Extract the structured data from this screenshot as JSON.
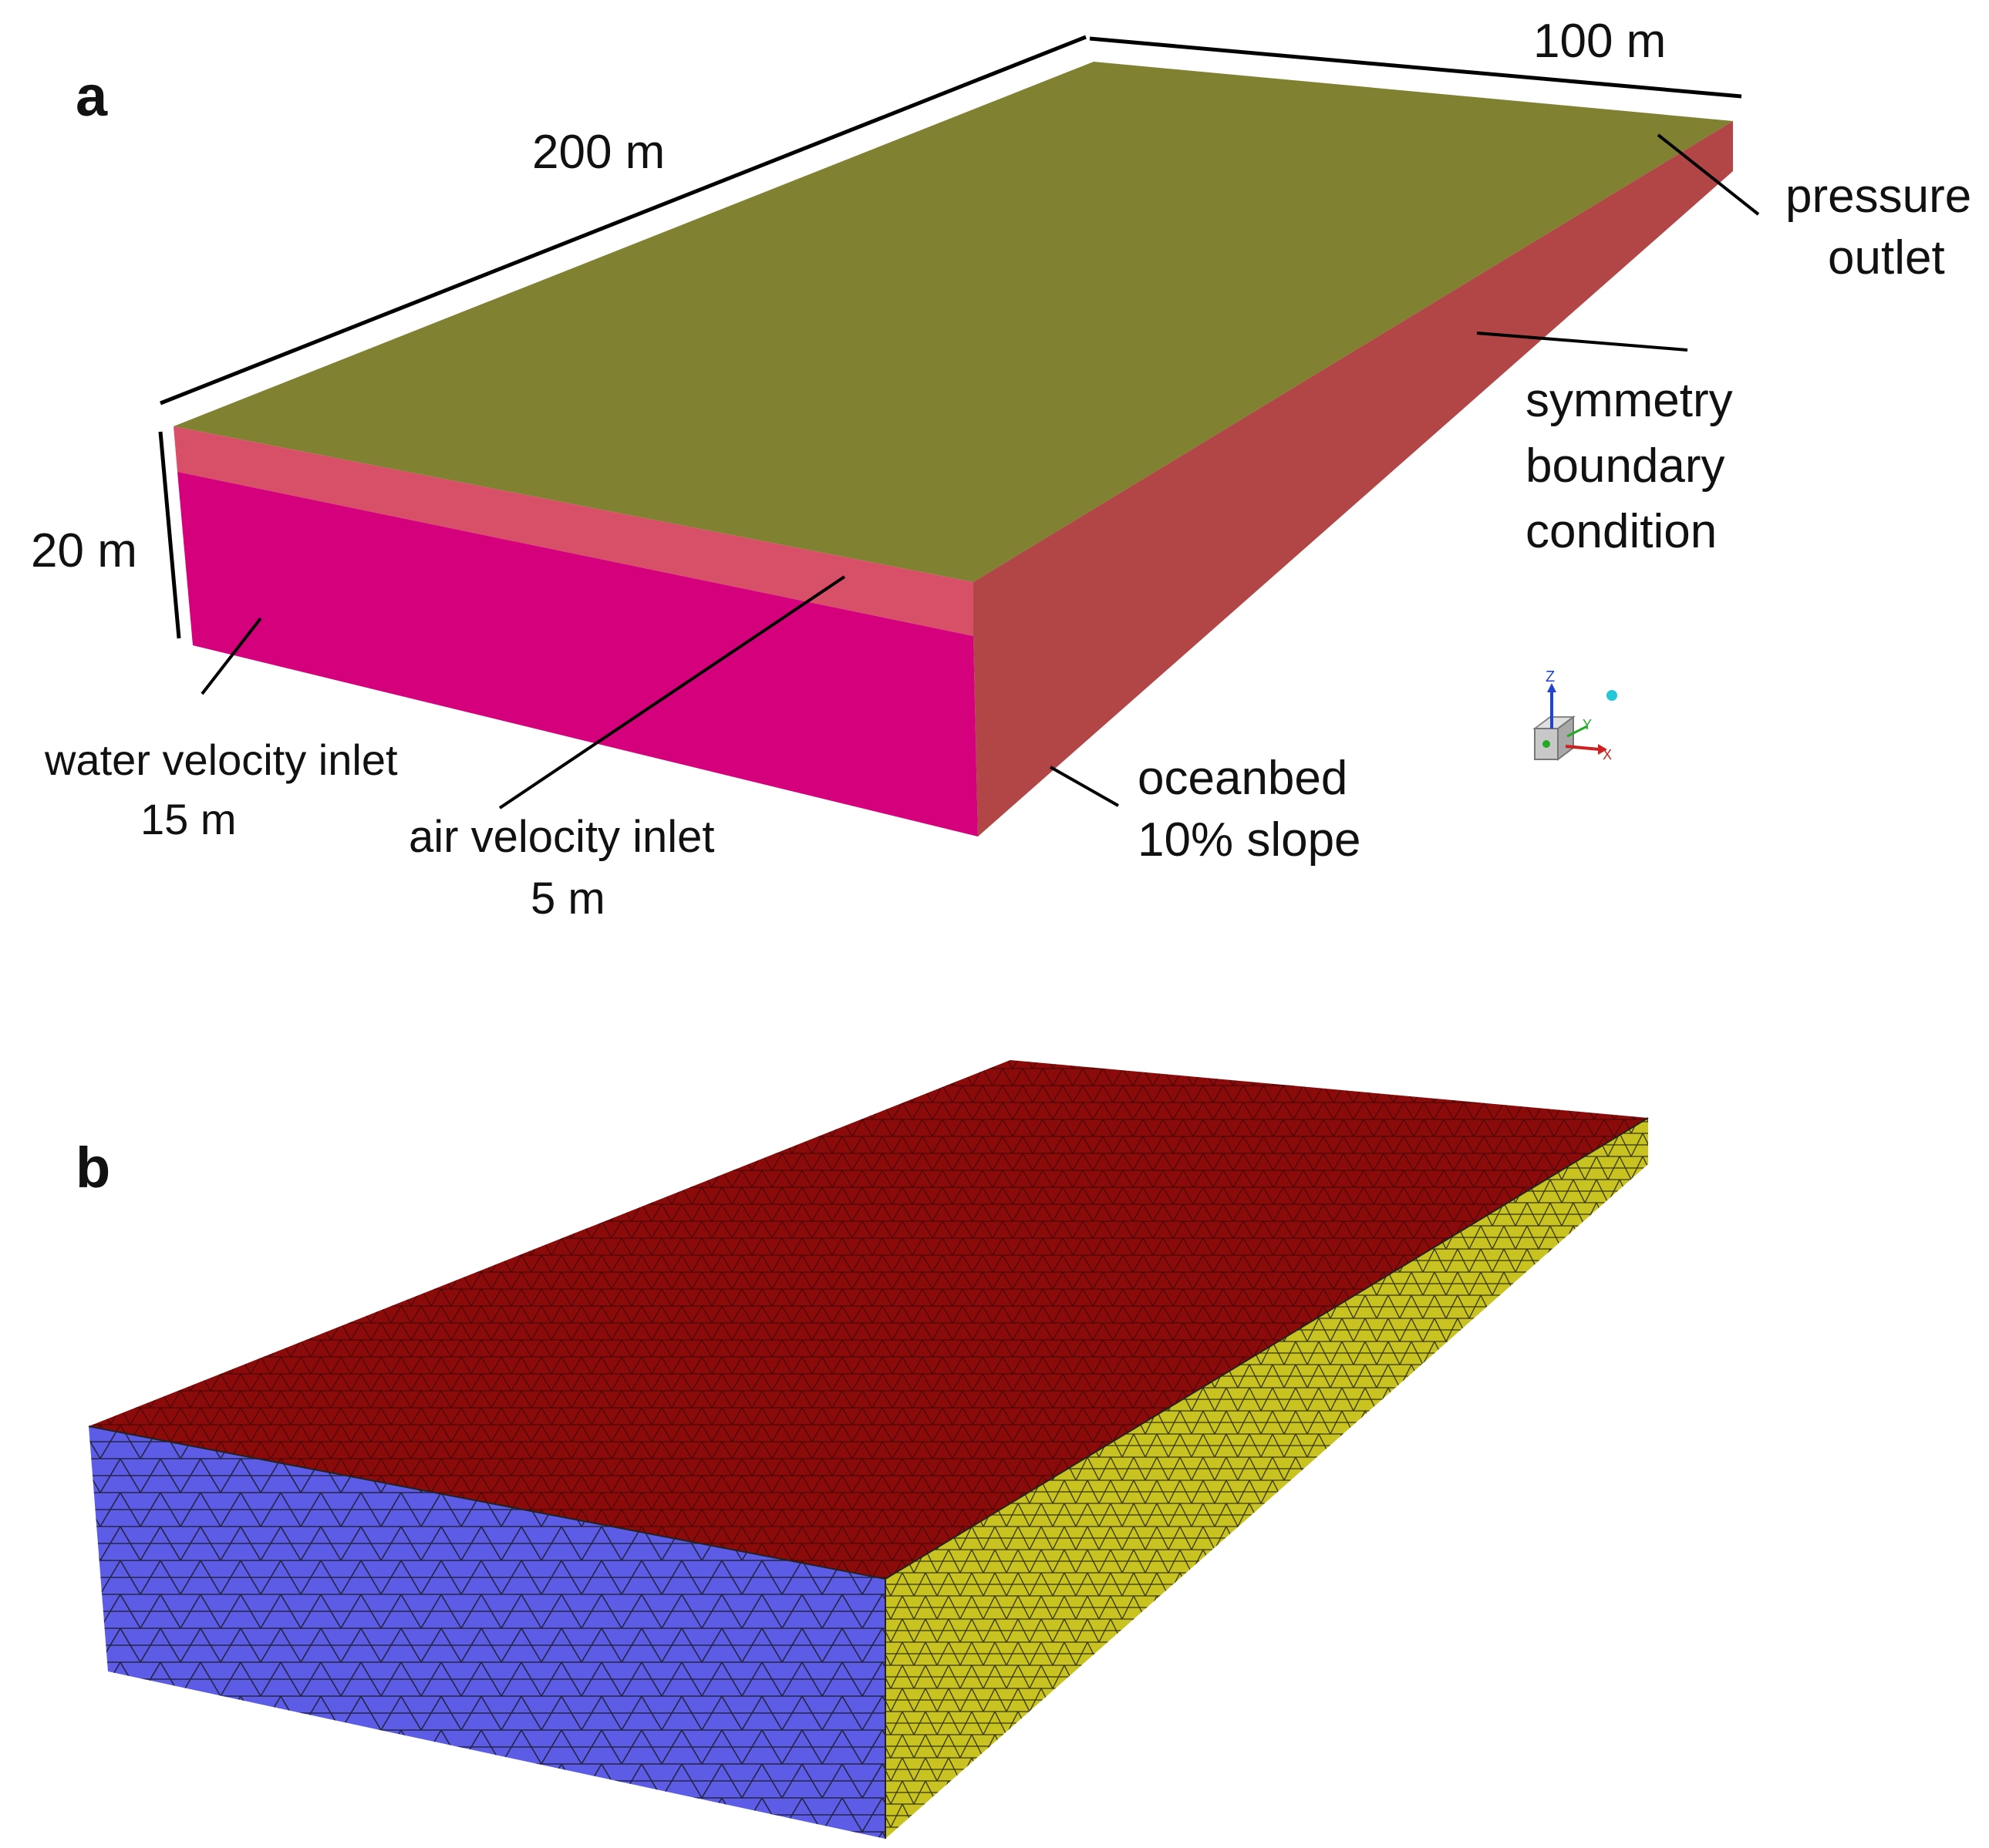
{
  "panel_a": {
    "letter": "a",
    "dim_length": "200 m",
    "dim_width": "100 m",
    "dim_height": "20 m",
    "pressure_outlet": [
      "pressure",
      "outlet"
    ],
    "symmetry": [
      "symmetry",
      "boundary",
      "condition"
    ],
    "water_inlet": [
      "water velocity inlet",
      "15 m"
    ],
    "air_inlet": [
      "air velocity inlet",
      "5 m"
    ],
    "oceanbed": [
      "oceanbed",
      "10% slope"
    ],
    "axis_triad": {
      "z": "Z",
      "y": "Y",
      "x": "X"
    },
    "colors": {
      "top": "#808231",
      "side": "#B24545",
      "water_face": "#D4007C",
      "air_face": "#D85068"
    }
  },
  "panel_b": {
    "letter": "b",
    "colors": {
      "top": "#8B0A0A",
      "front": "#5C5CE6",
      "side": "#C8C320",
      "mesh": "#111111"
    }
  }
}
